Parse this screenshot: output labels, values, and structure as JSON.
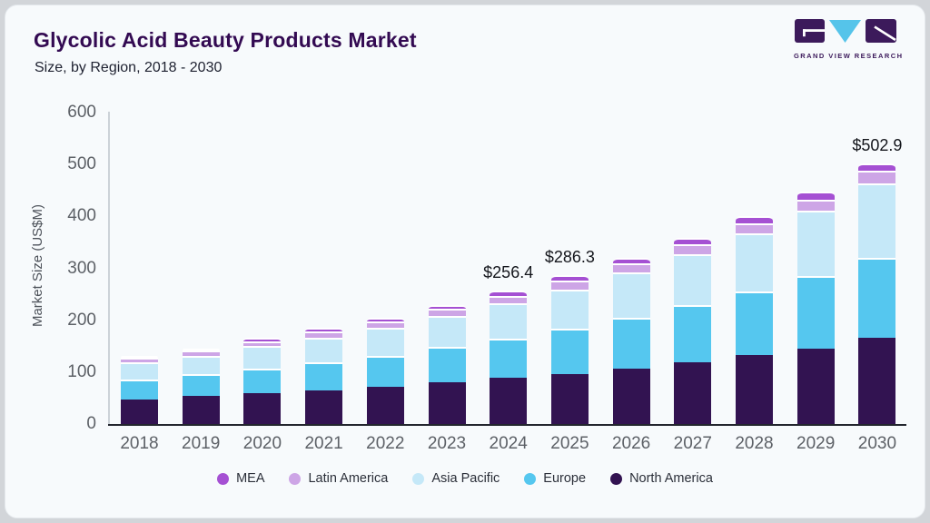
{
  "page": {
    "background": "#d2d5d9",
    "card_background": "#f7fafc"
  },
  "header": {
    "title": "Glycolic Acid Beauty Products Market",
    "subtitle": "Size, by Region, 2018 - 2030",
    "title_color": "#330a52"
  },
  "logo": {
    "brand_text": "GRAND VIEW RESEARCH",
    "purple": "#3c1a5b",
    "blue": "#55c4ea"
  },
  "chart_data": {
    "type": "bar",
    "stacked": true,
    "title": "Glycolic Acid Beauty Products Market Size, by Region, 2018 - 2030",
    "xlabel": "",
    "ylabel": "Market Size (US$M)",
    "ylim": [
      0,
      600
    ],
    "yticks": [
      0,
      100,
      200,
      300,
      400,
      500,
      600
    ],
    "grid": false,
    "legend_position": "bottom",
    "categories": [
      "2018",
      "2019",
      "2020",
      "2021",
      "2022",
      "2023",
      "2024",
      "2025",
      "2026",
      "2027",
      "2028",
      "2029",
      "2030"
    ],
    "series": [
      {
        "name": "North America",
        "color": "#321351",
        "values": [
          48,
          54,
          59,
          65,
          72,
          80,
          88.5,
          97,
          107,
          119,
          133,
          146,
          167
        ]
      },
      {
        "name": "Europe",
        "color": "#55c7ef",
        "values": [
          38,
          42,
          48,
          54,
          60,
          68,
          76.5,
          86,
          97,
          110,
          122,
          139,
          154
        ]
      },
      {
        "name": "Asia Pacific",
        "color": "#c5e8f8",
        "values": [
          33,
          36,
          43,
          48,
          54,
          61,
          67.5,
          76,
          88,
          99,
          113,
          126,
          142.5
        ]
      },
      {
        "name": "Latin America",
        "color": "#cda5e6",
        "values": [
          8,
          9,
          10,
          11,
          12,
          13,
          15,
          17,
          17.5,
          18,
          19,
          22,
          24.4
        ]
      },
      {
        "name": "MEA",
        "color": "#a550d3",
        "values": [
          4,
          5,
          6,
          7,
          7,
          8,
          8.9,
          10.3,
          10.5,
          12,
          13,
          15,
          15
        ]
      }
    ],
    "totals": [
      131,
      146,
      166,
      185,
      205,
      230,
      256.4,
      286.3,
      320,
      358,
      400,
      448,
      502.9
    ],
    "annotations": [
      {
        "category": "2024",
        "label": "$256.4"
      },
      {
        "category": "2025",
        "label": "$286.3"
      },
      {
        "category": "2030",
        "label": "$502.9"
      }
    ],
    "legend": [
      "MEA",
      "Latin America",
      "Asia Pacific",
      "Europe",
      "North America"
    ],
    "axis_colors": {
      "baseline": "#23262e",
      "y_line": "#ccd2d8",
      "tick_text": "#5d6167"
    }
  }
}
